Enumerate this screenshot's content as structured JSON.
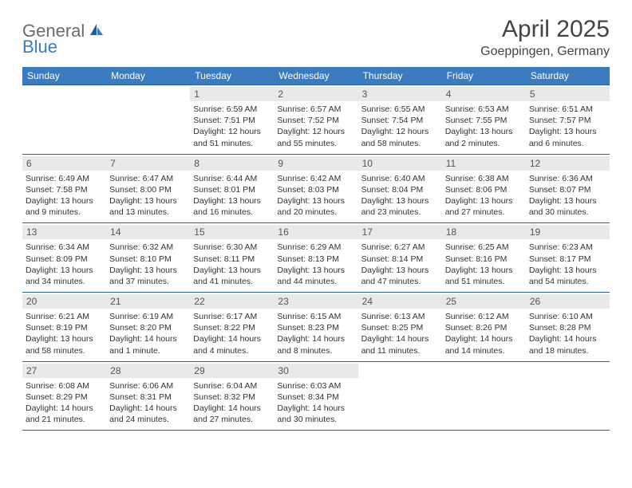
{
  "logo": {
    "text1": "General",
    "text2": "Blue"
  },
  "title": "April 2025",
  "location": "Goeppingen, Germany",
  "colors": {
    "header_bg": "#3b7bbf",
    "header_text": "#ffffff",
    "daynum_bg": "#e9e9e9",
    "row_border": "#2b5f95",
    "logo_gray": "#6b6b6b",
    "logo_blue": "#3b7bbf"
  },
  "day_headers": [
    "Sunday",
    "Monday",
    "Tuesday",
    "Wednesday",
    "Thursday",
    "Friday",
    "Saturday"
  ],
  "weeks": [
    [
      null,
      null,
      {
        "n": "1",
        "sr": "Sunrise: 6:59 AM",
        "ss": "Sunset: 7:51 PM",
        "dl": "Daylight: 12 hours and 51 minutes."
      },
      {
        "n": "2",
        "sr": "Sunrise: 6:57 AM",
        "ss": "Sunset: 7:52 PM",
        "dl": "Daylight: 12 hours and 55 minutes."
      },
      {
        "n": "3",
        "sr": "Sunrise: 6:55 AM",
        "ss": "Sunset: 7:54 PM",
        "dl": "Daylight: 12 hours and 58 minutes."
      },
      {
        "n": "4",
        "sr": "Sunrise: 6:53 AM",
        "ss": "Sunset: 7:55 PM",
        "dl": "Daylight: 13 hours and 2 minutes."
      },
      {
        "n": "5",
        "sr": "Sunrise: 6:51 AM",
        "ss": "Sunset: 7:57 PM",
        "dl": "Daylight: 13 hours and 6 minutes."
      }
    ],
    [
      {
        "n": "6",
        "sr": "Sunrise: 6:49 AM",
        "ss": "Sunset: 7:58 PM",
        "dl": "Daylight: 13 hours and 9 minutes."
      },
      {
        "n": "7",
        "sr": "Sunrise: 6:47 AM",
        "ss": "Sunset: 8:00 PM",
        "dl": "Daylight: 13 hours and 13 minutes."
      },
      {
        "n": "8",
        "sr": "Sunrise: 6:44 AM",
        "ss": "Sunset: 8:01 PM",
        "dl": "Daylight: 13 hours and 16 minutes."
      },
      {
        "n": "9",
        "sr": "Sunrise: 6:42 AM",
        "ss": "Sunset: 8:03 PM",
        "dl": "Daylight: 13 hours and 20 minutes."
      },
      {
        "n": "10",
        "sr": "Sunrise: 6:40 AM",
        "ss": "Sunset: 8:04 PM",
        "dl": "Daylight: 13 hours and 23 minutes."
      },
      {
        "n": "11",
        "sr": "Sunrise: 6:38 AM",
        "ss": "Sunset: 8:06 PM",
        "dl": "Daylight: 13 hours and 27 minutes."
      },
      {
        "n": "12",
        "sr": "Sunrise: 6:36 AM",
        "ss": "Sunset: 8:07 PM",
        "dl": "Daylight: 13 hours and 30 minutes."
      }
    ],
    [
      {
        "n": "13",
        "sr": "Sunrise: 6:34 AM",
        "ss": "Sunset: 8:09 PM",
        "dl": "Daylight: 13 hours and 34 minutes."
      },
      {
        "n": "14",
        "sr": "Sunrise: 6:32 AM",
        "ss": "Sunset: 8:10 PM",
        "dl": "Daylight: 13 hours and 37 minutes."
      },
      {
        "n": "15",
        "sr": "Sunrise: 6:30 AM",
        "ss": "Sunset: 8:11 PM",
        "dl": "Daylight: 13 hours and 41 minutes."
      },
      {
        "n": "16",
        "sr": "Sunrise: 6:29 AM",
        "ss": "Sunset: 8:13 PM",
        "dl": "Daylight: 13 hours and 44 minutes."
      },
      {
        "n": "17",
        "sr": "Sunrise: 6:27 AM",
        "ss": "Sunset: 8:14 PM",
        "dl": "Daylight: 13 hours and 47 minutes."
      },
      {
        "n": "18",
        "sr": "Sunrise: 6:25 AM",
        "ss": "Sunset: 8:16 PM",
        "dl": "Daylight: 13 hours and 51 minutes."
      },
      {
        "n": "19",
        "sr": "Sunrise: 6:23 AM",
        "ss": "Sunset: 8:17 PM",
        "dl": "Daylight: 13 hours and 54 minutes."
      }
    ],
    [
      {
        "n": "20",
        "sr": "Sunrise: 6:21 AM",
        "ss": "Sunset: 8:19 PM",
        "dl": "Daylight: 13 hours and 58 minutes."
      },
      {
        "n": "21",
        "sr": "Sunrise: 6:19 AM",
        "ss": "Sunset: 8:20 PM",
        "dl": "Daylight: 14 hours and 1 minute."
      },
      {
        "n": "22",
        "sr": "Sunrise: 6:17 AM",
        "ss": "Sunset: 8:22 PM",
        "dl": "Daylight: 14 hours and 4 minutes."
      },
      {
        "n": "23",
        "sr": "Sunrise: 6:15 AM",
        "ss": "Sunset: 8:23 PM",
        "dl": "Daylight: 14 hours and 8 minutes."
      },
      {
        "n": "24",
        "sr": "Sunrise: 6:13 AM",
        "ss": "Sunset: 8:25 PM",
        "dl": "Daylight: 14 hours and 11 minutes."
      },
      {
        "n": "25",
        "sr": "Sunrise: 6:12 AM",
        "ss": "Sunset: 8:26 PM",
        "dl": "Daylight: 14 hours and 14 minutes."
      },
      {
        "n": "26",
        "sr": "Sunrise: 6:10 AM",
        "ss": "Sunset: 8:28 PM",
        "dl": "Daylight: 14 hours and 18 minutes."
      }
    ],
    [
      {
        "n": "27",
        "sr": "Sunrise: 6:08 AM",
        "ss": "Sunset: 8:29 PM",
        "dl": "Daylight: 14 hours and 21 minutes."
      },
      {
        "n": "28",
        "sr": "Sunrise: 6:06 AM",
        "ss": "Sunset: 8:31 PM",
        "dl": "Daylight: 14 hours and 24 minutes."
      },
      {
        "n": "29",
        "sr": "Sunrise: 6:04 AM",
        "ss": "Sunset: 8:32 PM",
        "dl": "Daylight: 14 hours and 27 minutes."
      },
      {
        "n": "30",
        "sr": "Sunrise: 6:03 AM",
        "ss": "Sunset: 8:34 PM",
        "dl": "Daylight: 14 hours and 30 minutes."
      },
      null,
      null,
      null
    ]
  ]
}
